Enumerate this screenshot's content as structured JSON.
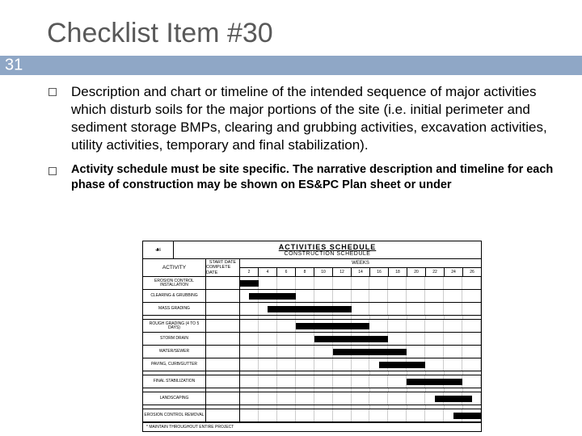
{
  "title": "Checklist Item #30",
  "page_number": "31",
  "bullets": [
    {
      "text": "Description and chart or timeline of the intended sequence of major activities which disturb soils for the major portions of the site (i.e. initial perimeter and sediment storage BMPs, clearing and grubbing activities, excavation activities, utility activities, temporary and final stabilization).",
      "style": "normal"
    },
    {
      "text": "Activity schedule must be site specific. The narrative description and timeline for each phase of construction may be shown on ES&PC Plan sheet or under",
      "style": "bold"
    }
  ],
  "chart": {
    "icon_label": "",
    "title": "ACTIVITIES SCHEDULE",
    "subtitle": "CONSTRUCTION SCHEDULE",
    "activity_label": "ACTIVITY",
    "date_labels": [
      "START DATE",
      "COMPLETE DATE"
    ],
    "weeks_label": "WEEKS",
    "weeks": [
      2,
      4,
      6,
      8,
      10,
      12,
      14,
      16,
      18,
      20,
      22,
      24,
      26
    ],
    "rows": [
      {
        "label": "EROSION CONTROL INSTALLATION",
        "start": 0,
        "end": 1
      },
      {
        "label": "CLEARING & GRUBBING",
        "start": 0.5,
        "end": 3
      },
      {
        "label": "MASS GRADING",
        "start": 1.5,
        "end": 6
      },
      {
        "label": "",
        "gap": true
      },
      {
        "label": "ROUGH GRADING (4 TO 5 DAYS)",
        "start": 3,
        "end": 7
      },
      {
        "label": "STORM DRAIN",
        "start": 4,
        "end": 8
      },
      {
        "label": "WATER/SEWER",
        "start": 5,
        "end": 9
      },
      {
        "label": "PAVING, CURB/GUTTER",
        "start": 7.5,
        "end": 10
      },
      {
        "label": "",
        "gap": true
      },
      {
        "label": "FINAL STABILIZATION",
        "start": 9,
        "end": 12
      },
      {
        "label": "",
        "gap": true
      },
      {
        "label": "LANDSCAPING",
        "start": 10.5,
        "end": 12.5
      },
      {
        "label": "",
        "gap": true
      },
      {
        "label": "EROSION CONTROL REMOVAL",
        "start": 11.5,
        "end": 13
      }
    ],
    "footnote": "* MAINTAIN THROUGHOUT ENTIRE PROJECT",
    "grid_color": "#cccccc",
    "bar_color": "#000000",
    "border_color": "#000000"
  }
}
